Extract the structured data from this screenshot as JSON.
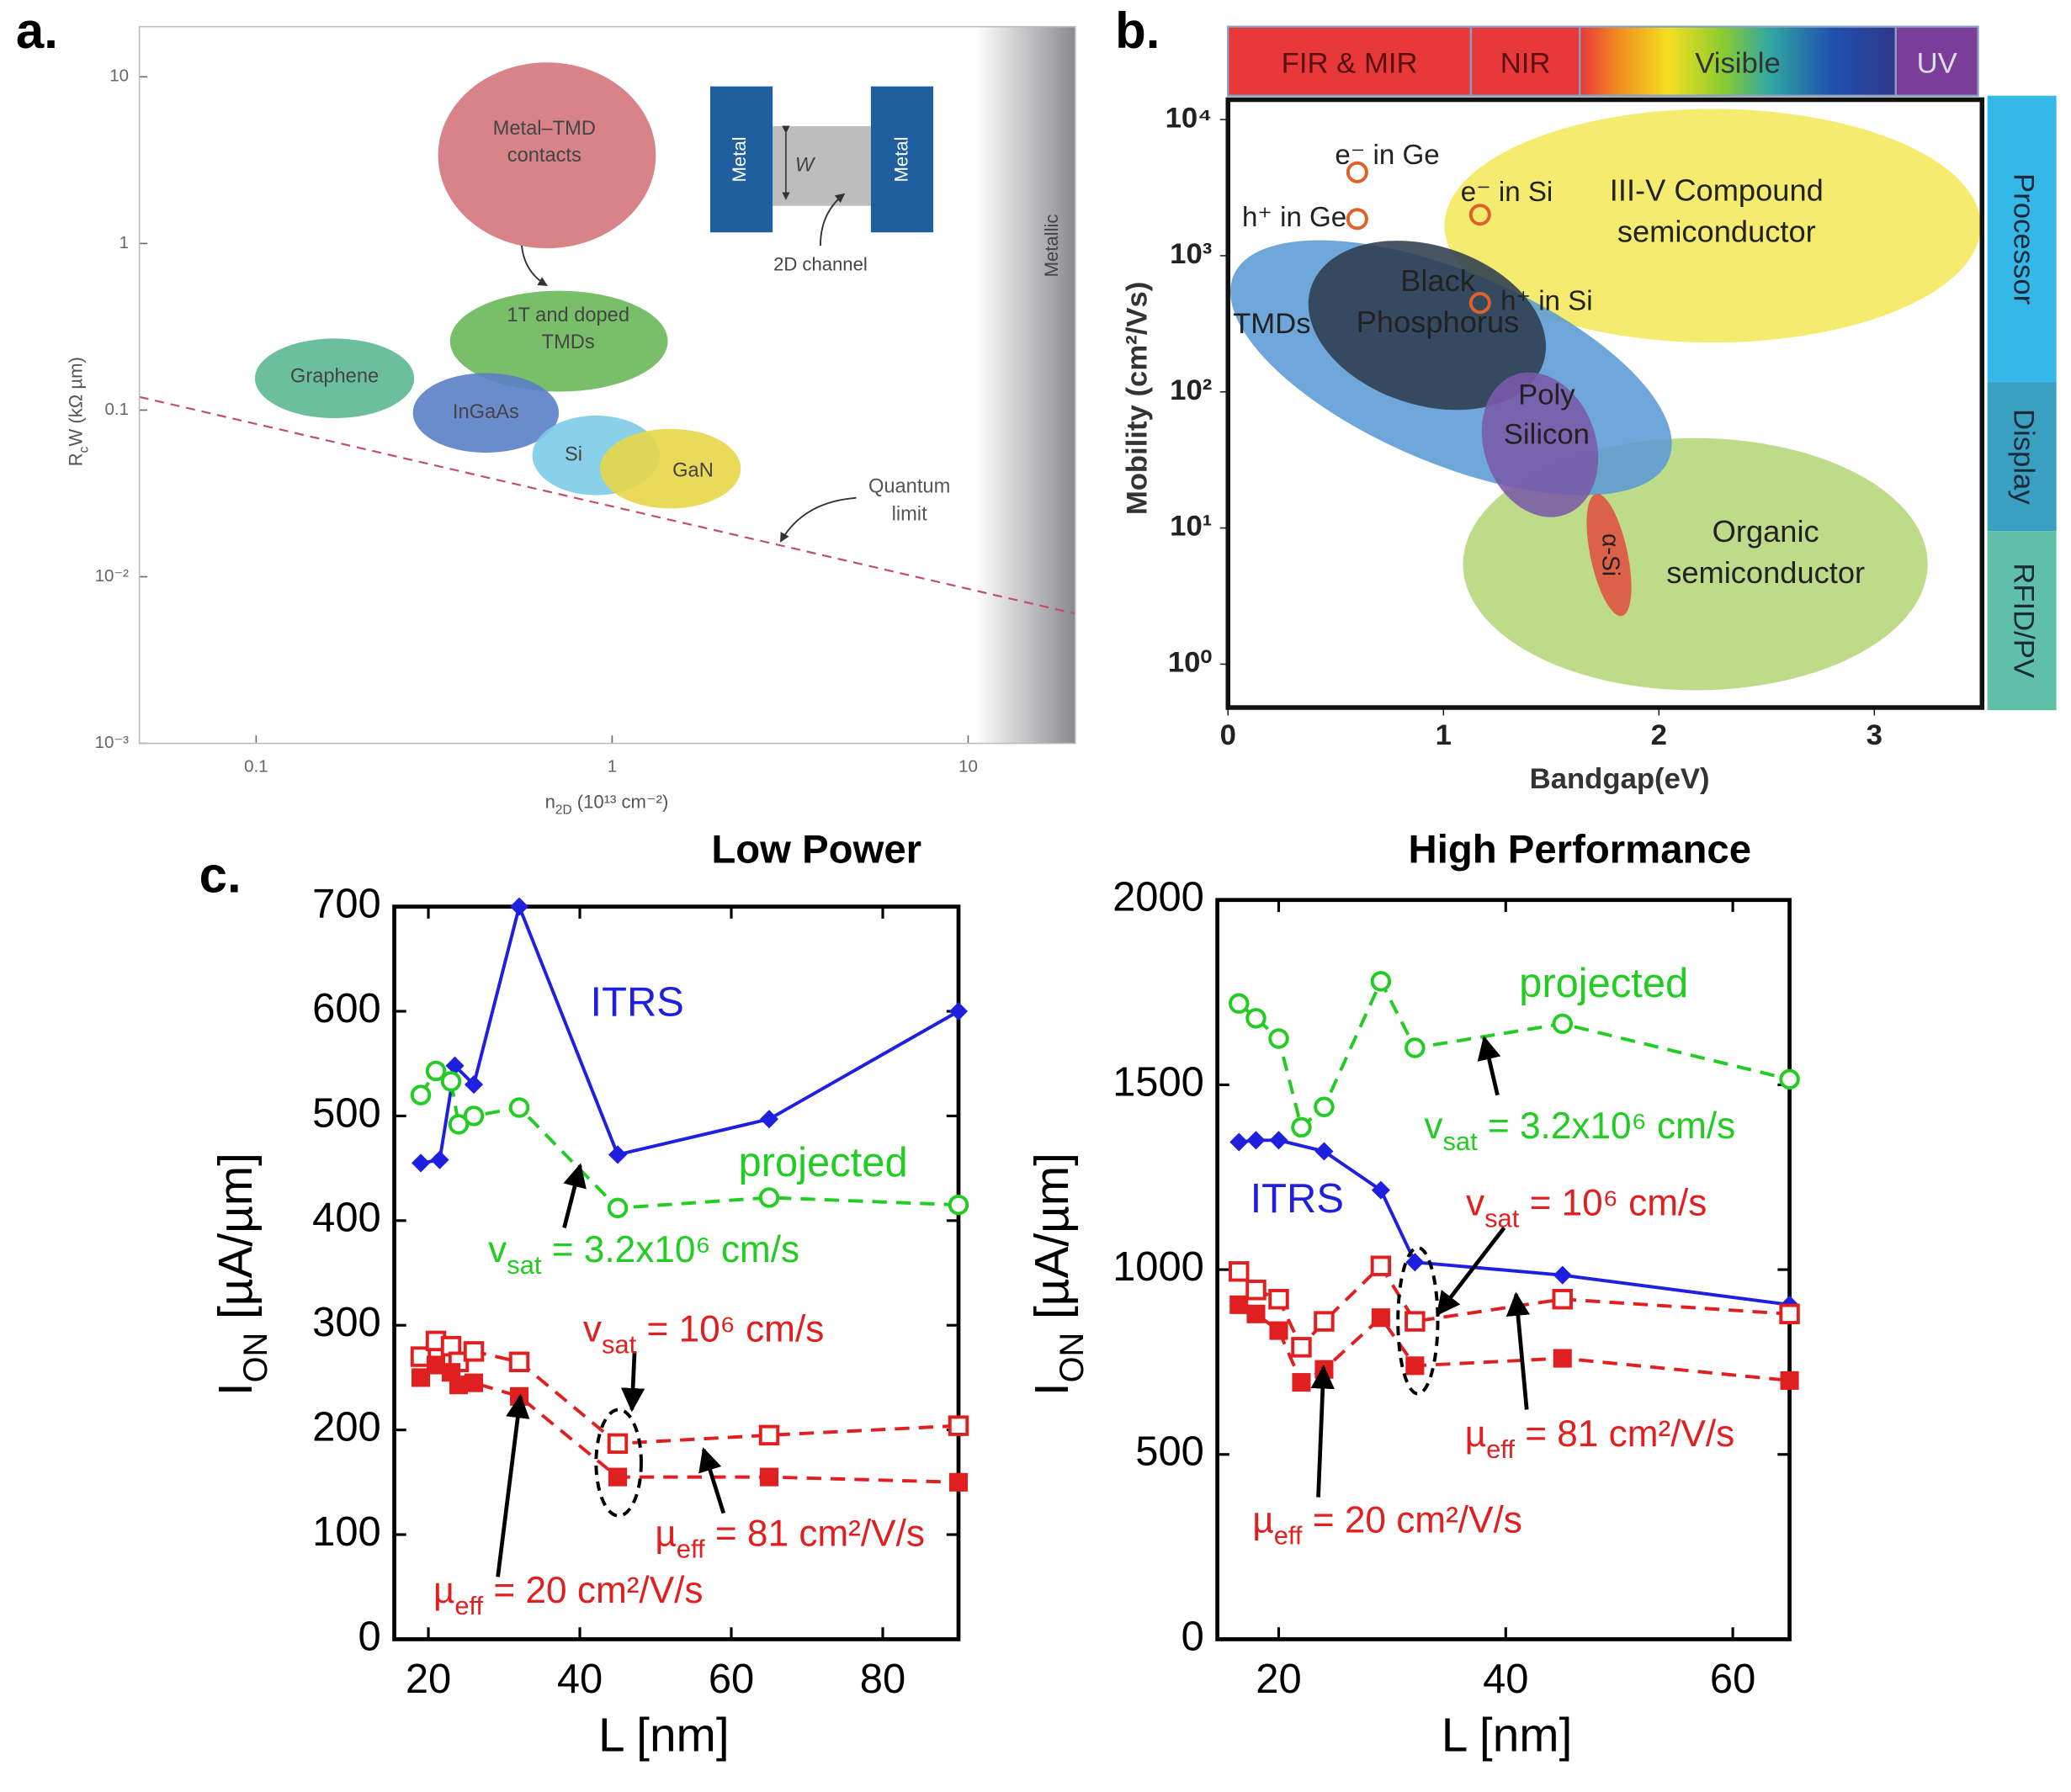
{
  "panel_labels": [
    "a.",
    "b.",
    "c."
  ],
  "chart_data": [
    {
      "type": "region",
      "xlabel": {
        "text": "n",
        "sub": "2D",
        "rest": " (10¹³ cm⁻²)"
      },
      "ylabel": {
        "text": "R",
        "sub": "c",
        "rest": "W (kΩ µm)"
      },
      "xlog": true,
      "ylog": true,
      "xlim": [
        0.047,
        20
      ],
      "ylim": [
        0.001,
        20
      ],
      "xticks": [
        0.1,
        1,
        10
      ],
      "yticks": [
        {
          "value": 0.001,
          "label": "10⁻³"
        },
        {
          "value": 0.01,
          "label": "10⁻²"
        },
        0.1,
        1,
        10
      ],
      "regions": [
        {
          "label": [
            "Metal–TMD",
            "contacts"
          ],
          "color": "#d4767a"
        },
        {
          "label": [
            "1T and doped",
            "TMDs"
          ],
          "color": "#6ab85a"
        },
        {
          "label": [
            "Graphene"
          ],
          "color": "#5cb892"
        },
        {
          "label": [
            "InGaAs"
          ],
          "color": "#5b80c6"
        },
        {
          "label": [
            "Si"
          ],
          "color": "#7ccbe8"
        },
        {
          "label": [
            "GaN"
          ],
          "color": "#e8d648"
        }
      ],
      "shaded": {
        "label": "Metallic",
        "xlim": [
          10.5,
          20
        ]
      },
      "inset": {
        "metal": "Metal",
        "width": "W",
        "channel": "2D channel"
      },
      "series": [
        {
          "color": "#c0506a",
          "dash": true,
          "x": [
            0.047,
            20
          ],
          "values": [
            0.12,
            0.006
          ]
        }
      ],
      "annotations": [
        [
          "Quantum",
          "limit"
        ]
      ]
    },
    {
      "type": "region",
      "xlabel": "Bandgap(eV)",
      "ylabel": "Mobility (cm²/Vs)",
      "ylog": true,
      "xlim": [
        0,
        3.5
      ],
      "ylim": [
        0.48,
        14000
      ],
      "xticks": [
        0,
        1,
        2,
        3
      ],
      "yticks": [
        {
          "value": 1,
          "label": "10⁰"
        },
        {
          "value": 10,
          "label": "10¹"
        },
        {
          "value": 100,
          "label": "10²"
        },
        {
          "value": 1000,
          "label": "10³"
        },
        {
          "value": 10000,
          "label": "10⁴"
        }
      ],
      "regions": [
        {
          "label": [
            "III-V Compound",
            "semiconductor"
          ],
          "color": "#f4e85a"
        },
        {
          "label": [
            "Organic",
            "semiconductor"
          ],
          "color": "#b5d67a"
        },
        {
          "label": [
            "TMDs"
          ],
          "color": "#5b9bd5"
        },
        {
          "label": [
            "Black",
            "Phosphorus"
          ],
          "color": "#2d3e50"
        },
        {
          "label": [
            "Poly",
            "Silicon"
          ],
          "color": "#7a5aa8"
        },
        {
          "label": [
            "α-Si"
          ],
          "color": "#e05040"
        }
      ],
      "points": {
        "labels": [
          "e⁻ in Ge",
          "h⁺ in Ge",
          "e⁻ in Si",
          "h⁺ in Si"
        ],
        "x": [
          0.6,
          0.6,
          1.17,
          1.17
        ],
        "values": [
          4100,
          1860,
          2000,
          450
        ],
        "color": "#e0602a"
      },
      "bands_top": [
        {
          "label": "FIR & MIR",
          "color": "#e8383a"
        },
        {
          "label": "NIR",
          "color": "#e8383a"
        },
        {
          "label": "Visible"
        },
        {
          "label": "UV",
          "color": "#7a3d9a"
        }
      ],
      "bands_right": [
        {
          "label": "Processor",
          "color": "#34b8e8"
        },
        {
          "label": "Display",
          "color": "#3a9fc0"
        },
        {
          "label": "RFID/PV",
          "color": "#5fbfa8"
        }
      ]
    },
    {
      "type": "line",
      "title": "Low Power",
      "xlabel": "L [nm]",
      "ylabel": {
        "text": "I",
        "sub": "ON",
        "rest": " [µA/µm]"
      },
      "xlim": [
        15.5,
        90
      ],
      "ylim": [
        0,
        700
      ],
      "xticks": [
        20,
        40,
        60,
        80
      ],
      "yticks": [
        0,
        100,
        200,
        300,
        400,
        500,
        600,
        700
      ],
      "series": [
        {
          "name": "ITRS",
          "color": "#1f1fe0",
          "marker": "diamond",
          "dash": false,
          "x": [
            19,
            21.5,
            23.5,
            26,
            32,
            45,
            65,
            90
          ],
          "values": [
            455,
            458,
            548,
            530,
            700,
            463,
            497,
            600
          ]
        },
        {
          "name": "projected",
          "color": "#22cc22",
          "marker": "open-circle",
          "dash": true,
          "x": [
            19,
            21,
            23,
            24,
            26,
            32,
            45,
            65,
            90
          ],
          "values": [
            520,
            543,
            533,
            492,
            500,
            508,
            412,
            422,
            415
          ]
        },
        {
          "color": "#e02020",
          "marker": "open-square",
          "dash": true,
          "x": [
            19,
            21,
            23,
            24,
            26,
            32,
            45,
            65,
            90
          ],
          "values": [
            270,
            285,
            280,
            265,
            275,
            265,
            187,
            195,
            204
          ]
        },
        {
          "color": "#e02020",
          "marker": "square",
          "dash": true,
          "x": [
            19,
            21,
            23,
            24,
            26,
            32,
            45,
            65,
            90
          ],
          "values": [
            250,
            262,
            255,
            243,
            245,
            232,
            155,
            155,
            150
          ]
        }
      ],
      "annotations": [
        {
          "text": "v",
          "sub": "sat",
          "rest": " = 3.2x10⁶ cm/s",
          "color": "#22cc22"
        },
        {
          "text": "v",
          "sub": "sat",
          "rest": " = 10⁶ cm/s",
          "color": "#e02020"
        },
        {
          "text": "µ",
          "sub": "eff",
          "rest": " = 81 cm²/V/s",
          "color": "#e02020"
        },
        {
          "text": "µ",
          "sub": "eff",
          "rest": " = 20 cm²/V/s",
          "color": "#e02020"
        }
      ]
    },
    {
      "type": "line",
      "title": "High Performance",
      "xlabel": "L [nm]",
      "ylabel": {
        "text": "I",
        "sub": "ON",
        "rest": " [µA/µm]"
      },
      "xlim": [
        14.6,
        65
      ],
      "ylim": [
        0,
        2000
      ],
      "xticks": [
        20,
        40,
        60
      ],
      "yticks": [
        0,
        500,
        1000,
        1500,
        2000
      ],
      "series": [
        {
          "name": "ITRS",
          "color": "#1f1fe0",
          "marker": "diamond",
          "dash": false,
          "x": [
            16.5,
            18,
            20,
            24,
            29,
            32,
            45,
            65
          ],
          "values": [
            1345,
            1350,
            1350,
            1320,
            1215,
            1020,
            985,
            905
          ]
        },
        {
          "name": "projected",
          "color": "#22cc22",
          "marker": "open-circle",
          "dash": true,
          "x": [
            16.5,
            18,
            20,
            22,
            24,
            29,
            32,
            45,
            65
          ],
          "values": [
            1720,
            1680,
            1625,
            1385,
            1440,
            1780,
            1600,
            1665,
            1515
          ]
        },
        {
          "color": "#e02020",
          "marker": "open-square",
          "dash": true,
          "x": [
            16.5,
            18,
            20,
            22,
            24,
            29,
            32,
            45,
            65
          ],
          "values": [
            995,
            945,
            920,
            790,
            860,
            1010,
            860,
            920,
            880
          ]
        },
        {
          "color": "#e02020",
          "marker": "square",
          "dash": true,
          "x": [
            16.5,
            18,
            20,
            22,
            24,
            29,
            32,
            45,
            65
          ],
          "values": [
            905,
            880,
            835,
            695,
            730,
            870,
            740,
            760,
            700
          ]
        }
      ],
      "annotations": [
        {
          "text": "v",
          "sub": "sat",
          "rest": " = 3.2x10⁶ cm/s",
          "color": "#22cc22"
        },
        {
          "text": "v",
          "sub": "sat",
          "rest": " = 10⁶ cm/s",
          "color": "#e02020"
        },
        {
          "text": "µ",
          "sub": "eff",
          "rest": " = 81 cm²/V/s",
          "color": "#e02020"
        },
        {
          "text": "µ",
          "sub": "eff",
          "rest": " = 20 cm²/V/s",
          "color": "#e02020"
        }
      ]
    }
  ]
}
